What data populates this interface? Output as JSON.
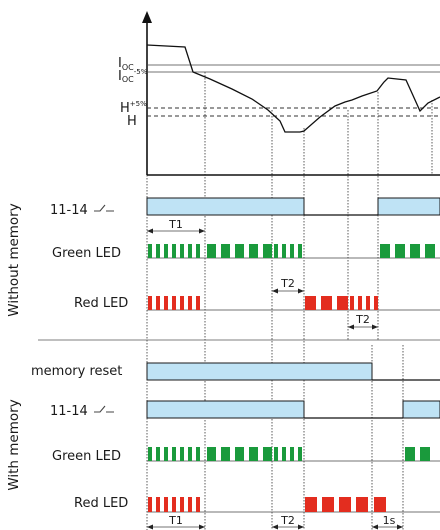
{
  "labels": {
    "ioc": "I",
    "ioc_sub": "OC",
    "ioc5": "I",
    "ioc5_sub": "OC",
    "ioc5_sup": "-5%",
    "h5": "H",
    "h5_sup": "+5%",
    "h": "H"
  },
  "sections": {
    "without_memory": "Without memory",
    "with_memory": "With memory"
  },
  "rows": {
    "relay_1": "11-14",
    "green_1": "Green LED",
    "red_1": "Red LED",
    "memory_reset": "memory reset",
    "relay_2": "11-14",
    "green_2": "Green LED",
    "red_2": "Red LED"
  },
  "timers": {
    "t1_a": "T1",
    "t2_a": "T2",
    "t2_b": "T2",
    "t1_b": "T1",
    "t2_c": "T2",
    "one_s": "1s"
  },
  "colors": {
    "green": "#1a9a3c",
    "red": "#e32d1f",
    "relay_fill": "#bfe3f5"
  }
}
